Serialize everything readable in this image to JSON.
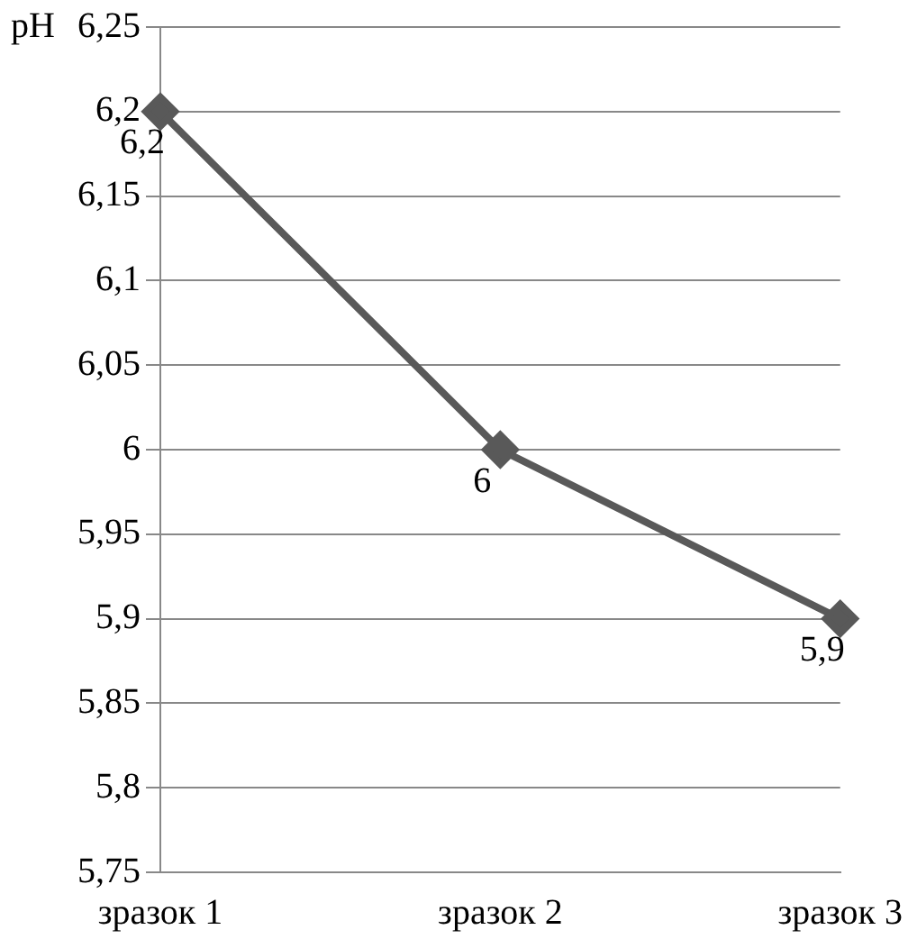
{
  "chart_data": {
    "type": "line",
    "ylabel": "pH",
    "categories": [
      "зразок 1",
      "зразок 2",
      "зразок 3"
    ],
    "series": [
      {
        "color": "#595959",
        "values": [
          6.2,
          6.0,
          5.9
        ],
        "value_labels": [
          "6,2",
          "6",
          "5,9"
        ]
      }
    ],
    "ylim": [
      5.75,
      6.25
    ],
    "yticks": [
      {
        "value": 5.75,
        "label": "5,75"
      },
      {
        "value": 5.8,
        "label": "5,8"
      },
      {
        "value": 5.85,
        "label": "5,85"
      },
      {
        "value": 5.9,
        "label": "5,9"
      },
      {
        "value": 5.95,
        "label": "5,95"
      },
      {
        "value": 6,
        "label": "6"
      },
      {
        "value": 6.05,
        "label": "6,05"
      },
      {
        "value": 6.1,
        "label": "6,1"
      },
      {
        "value": 6.15,
        "label": "6,15"
      },
      {
        "value": 6.2,
        "label": "6,2"
      },
      {
        "value": 6.25,
        "label": "6,25"
      }
    ],
    "grid": "y",
    "legend": false,
    "marker": "diamond",
    "line_style": "solid"
  }
}
